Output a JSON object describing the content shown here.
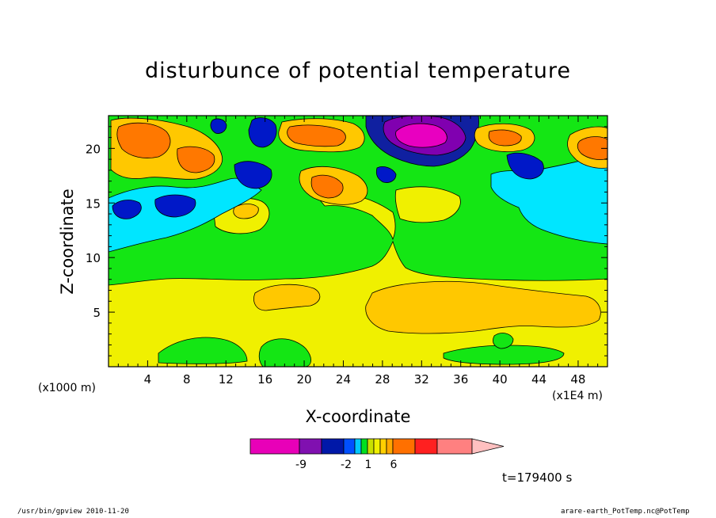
{
  "chart_data": {
    "type": "heatmap",
    "title": "disturbunce of potential temperature",
    "xlabel": "X-coordinate",
    "ylabel": "Z-coordinate",
    "x_unit": "(x1000 m)",
    "x_scale_note": "(x1E4 m)",
    "xlim": [
      0,
      51
    ],
    "ylim": [
      0,
      23
    ],
    "x_ticks": [
      "4",
      "8",
      "12",
      "16",
      "20",
      "24",
      "28",
      "32",
      "36",
      "40",
      "44",
      "48"
    ],
    "y_ticks": [
      "5",
      "10",
      "15",
      "20"
    ],
    "time_label": "t=179400 s",
    "colorbar": {
      "labels": [
        "-9",
        "-2",
        "1",
        "6"
      ],
      "colors": [
        "#e800b8",
        "#8010b0",
        "#0018a8",
        "#0050ff",
        "#00c8ff",
        "#00e020",
        "#c8e000",
        "#f0f000",
        "#ffd000",
        "#ffa800",
        "#ff7000",
        "#ff2020",
        "#ff8080",
        "#ffc0c0"
      ]
    },
    "regions": [
      {
        "level": "green",
        "value": 0
      },
      {
        "level": "yellow",
        "value": 1
      },
      {
        "level": "light-orange",
        "value": 2
      },
      {
        "level": "orange",
        "value": 4
      },
      {
        "level": "cyan",
        "value": -1
      },
      {
        "level": "blue",
        "value": -3
      },
      {
        "level": "dark-blue",
        "value": -5
      },
      {
        "level": "purple",
        "value": -7
      },
      {
        "level": "magenta",
        "value": -9
      }
    ]
  },
  "footer": {
    "left": "/usr/bin/gpview   2010-11-20",
    "right": "arare-earth_PotTemp.nc@PotTemp"
  },
  "colors": {
    "yellow": "#f0f000",
    "green": "#14e614",
    "cyan": "#00e6ff",
    "orange": "#ff7800",
    "light_orange": "#ffc800",
    "blue": "#0018c8",
    "dark_blue": "#1020a0",
    "purple": "#8000b0",
    "magenta": "#e800c0"
  }
}
